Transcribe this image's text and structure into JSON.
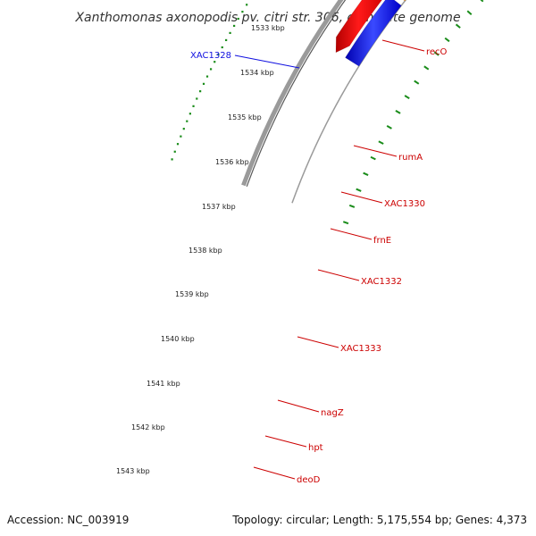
{
  "title": "Xanthomonas axonopodis pv. citri str. 306, complete genome",
  "footer": {
    "accession": "Accession: NC_003919",
    "summary": "Topology: circular; Length: 5,175,554 bp; Genes: 4,373"
  },
  "ticks": [
    {
      "label": "1533 kbp"
    },
    {
      "label": "1534 kbp"
    },
    {
      "label": "1535 kbp"
    },
    {
      "label": "1536 kbp"
    },
    {
      "label": "1537 kbp"
    },
    {
      "label": "1538 kbp"
    },
    {
      "label": "1539 kbp"
    },
    {
      "label": "1540 kbp"
    },
    {
      "label": "1541 kbp"
    },
    {
      "label": "1542 kbp"
    },
    {
      "label": "1543 kbp"
    }
  ],
  "gene_labels": [
    {
      "name": "XAC1328",
      "color": "#1010e0"
    },
    {
      "name": "recO",
      "color": "#cc0000"
    },
    {
      "name": "rumA",
      "color": "#cc0000"
    },
    {
      "name": "XAC1330",
      "color": "#cc0000"
    },
    {
      "name": "frnE",
      "color": "#cc0000"
    },
    {
      "name": "XAC1332",
      "color": "#cc0000"
    },
    {
      "name": "XAC1333",
      "color": "#cc0000"
    },
    {
      "name": "nagZ",
      "color": "#cc0000"
    },
    {
      "name": "hpt",
      "color": "#cc0000"
    },
    {
      "name": "deoD",
      "color": "#cc0000"
    }
  ],
  "colors": {
    "tick_green": "#1a8c1a",
    "backbone": "#808080",
    "cds_red": "#ee0000",
    "cds_blue": "#0a14ff"
  }
}
